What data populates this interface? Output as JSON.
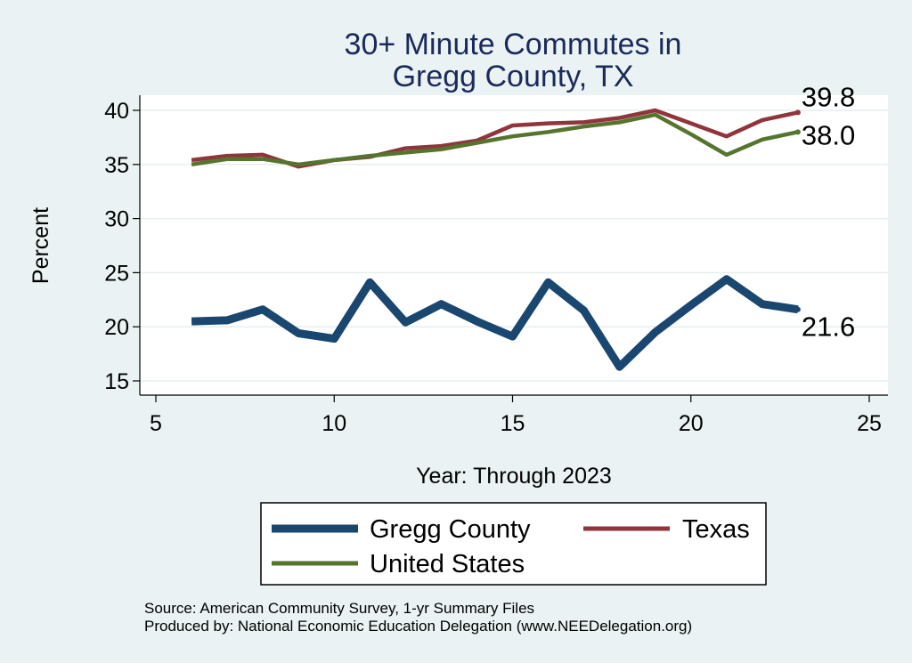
{
  "chart_data": {
    "type": "line",
    "title_lines": [
      "30+ Minute Commutes in",
      "Gregg County, TX"
    ],
    "xlabel": "Year: Through 2023",
    "ylabel": "Percent",
    "xlim": [
      5,
      25
    ],
    "ylim": [
      14,
      41.5
    ],
    "x_ticks": [
      5,
      10,
      15,
      20,
      25
    ],
    "y_ticks": [
      15,
      20,
      25,
      30,
      35,
      40
    ],
    "grid": true,
    "legend_position": "bottom",
    "x": [
      6,
      7,
      8,
      9,
      10,
      11,
      12,
      13,
      14,
      15,
      16,
      17,
      18,
      19,
      20,
      21,
      22,
      23
    ],
    "series": [
      {
        "name": "Gregg County",
        "color": "#1a476f",
        "values": [
          20.5,
          20.6,
          21.6,
          19.4,
          18.9,
          24.1,
          20.4,
          22.1,
          20.5,
          19.1,
          24.1,
          21.5,
          16.3,
          19.5,
          22.0,
          24.4,
          22.1,
          21.6
        ],
        "end_label": "21.6"
      },
      {
        "name": "Texas",
        "color": "#90353b",
        "values": [
          35.4,
          35.8,
          35.9,
          34.8,
          35.4,
          35.7,
          36.5,
          36.7,
          37.2,
          38.6,
          38.8,
          38.9,
          39.3,
          40.0,
          38.8,
          37.6,
          39.1,
          39.8
        ],
        "end_label": "39.8"
      },
      {
        "name": "United States",
        "color": "#55752f",
        "values": [
          35.0,
          35.5,
          35.5,
          35.0,
          35.4,
          35.8,
          36.1,
          36.4,
          37.0,
          37.6,
          38.0,
          38.5,
          38.9,
          39.6,
          37.8,
          35.9,
          37.3,
          38.0
        ],
        "end_label": "38.0"
      }
    ],
    "source_lines": [
      "Source: American Community Survey, 1-yr Summary Files",
      "Produced by: National Economic Education Delegation (www.NEEDelegation.org)"
    ]
  }
}
